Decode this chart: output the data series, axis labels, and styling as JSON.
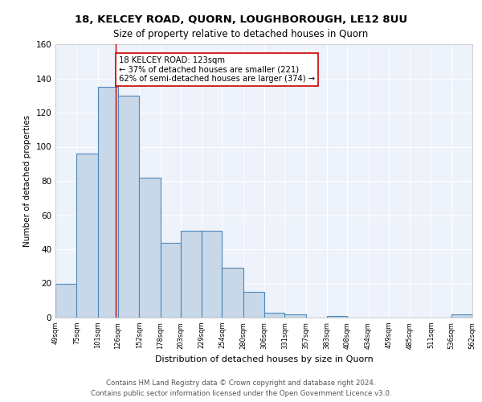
{
  "title1": "18, KELCEY ROAD, QUORN, LOUGHBOROUGH, LE12 8UU",
  "title2": "Size of property relative to detached houses in Quorn",
  "xlabel": "Distribution of detached houses by size in Quorn",
  "ylabel": "Number of detached properties",
  "footer1": "Contains HM Land Registry data © Crown copyright and database right 2024.",
  "footer2": "Contains public sector information licensed under the Open Government Licence v3.0.",
  "annotation_line1": "18 KELCEY ROAD: 123sqm",
  "annotation_line2": "← 37% of detached houses are smaller (221)",
  "annotation_line3": "62% of semi-detached houses are larger (374) →",
  "bar_edges": [
    49,
    75,
    101,
    126,
    152,
    178,
    203,
    229,
    254,
    280,
    306,
    331,
    357,
    383,
    408,
    434,
    459,
    485,
    511,
    536,
    562
  ],
  "bar_heights": [
    20,
    96,
    135,
    130,
    82,
    44,
    51,
    51,
    29,
    15,
    3,
    2,
    0,
    1,
    0,
    0,
    0,
    0,
    0,
    2
  ],
  "bar_color": "#c8d8e8",
  "bar_edge_color": "#4d88bb",
  "bar_edge_width": 0.8,
  "redline_x": 123,
  "ylim": [
    0,
    160
  ],
  "yticks": [
    0,
    20,
    40,
    60,
    80,
    100,
    120,
    140,
    160
  ],
  "bg_color": "#eef2fb",
  "grid_color": "#ffffff",
  "tick_labels": [
    "49sqm",
    "75sqm",
    "101sqm",
    "126sqm",
    "152sqm",
    "178sqm",
    "203sqm",
    "229sqm",
    "254sqm",
    "280sqm",
    "306sqm",
    "331sqm",
    "357sqm",
    "383sqm",
    "408sqm",
    "434sqm",
    "459sqm",
    "485sqm",
    "511sqm",
    "536sqm",
    "562sqm"
  ]
}
